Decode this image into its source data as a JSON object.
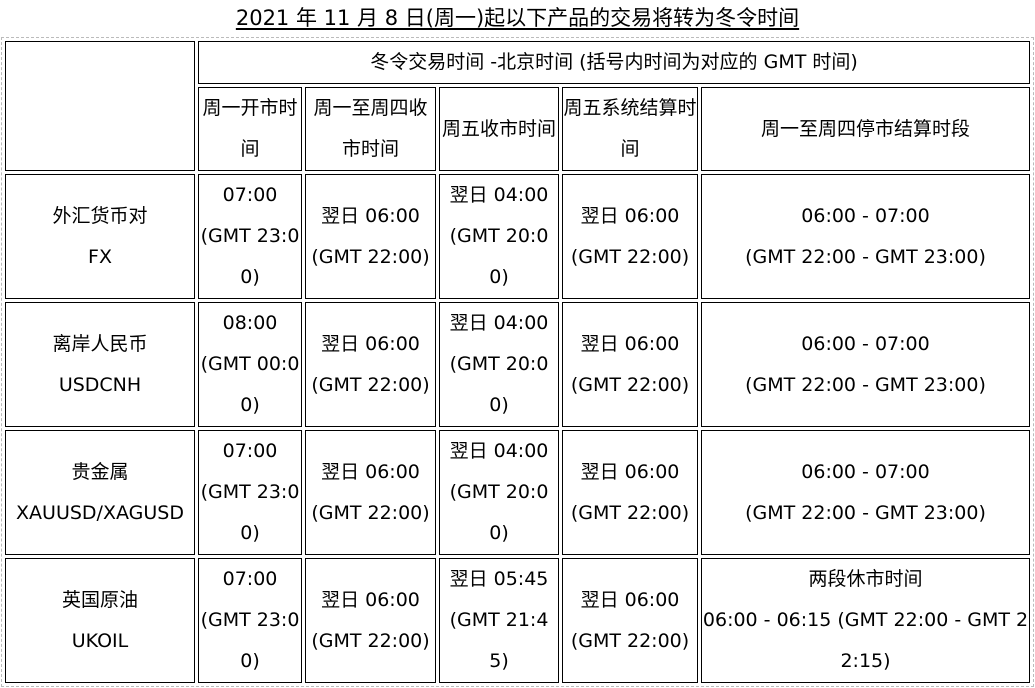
{
  "title": "2021 年 11 月 8 日(周一)起以下产品的交易将转为冬令时间",
  "header": {
    "group": "冬令交易时间 -北京时间 (括号内时间为对应的 GMT 时间)",
    "columns": [
      "周一开市时间",
      "周一至周四收市时间",
      "周五收市时间",
      "周五系统结算时间",
      "周一至周四停市结算时段"
    ]
  },
  "rows": [
    {
      "product": "外汇货币对",
      "symbol": "FX",
      "open": "07:00",
      "open_gmt": "(GMT 23:00)",
      "close": "翌日 06:00",
      "close_gmt": "(GMT 22:00)",
      "fri_close": "翌日 04:00",
      "fri_close_gmt": "(GMT 20:00)",
      "settle": "翌日 06:00",
      "settle_gmt": "(GMT 22:00)",
      "halt": "06:00 - 07:00",
      "halt_gmt": "(GMT 22:00 - GMT 23:00)"
    },
    {
      "product": "离岸人民币",
      "symbol": "USDCNH",
      "open": "08:00",
      "open_gmt": "(GMT 00:00)",
      "close": "翌日 06:00",
      "close_gmt": "(GMT 22:00)",
      "fri_close": "翌日 04:00",
      "fri_close_gmt": "(GMT 20:00)",
      "settle": "翌日 06:00",
      "settle_gmt": "(GMT 22:00)",
      "halt": "06:00 - 07:00",
      "halt_gmt": "(GMT 22:00 - GMT 23:00)"
    },
    {
      "product": "贵金属",
      "symbol": "XAUUSD/XAGUSD",
      "open": "07:00",
      "open_gmt": "(GMT 23:00)",
      "close": "翌日 06:00",
      "close_gmt": "(GMT 22:00)",
      "fri_close": "翌日 04:00",
      "fri_close_gmt": "(GMT 20:00)",
      "settle": "翌日 06:00",
      "settle_gmt": "(GMT 22:00)",
      "halt": "06:00 - 07:00",
      "halt_gmt": "(GMT 22:00 - GMT 23:00)"
    },
    {
      "product": "英国原油",
      "symbol": "UKOIL",
      "open": "07:00",
      "open_gmt": "(GMT 23:00)",
      "close": "翌日 06:00",
      "close_gmt": "(GMT 22:00)",
      "fri_close": "翌日 05:45",
      "fri_close_gmt": "(GMT 21:45)",
      "settle": "翌日 06:00",
      "settle_gmt": "(GMT 22:00)",
      "halt": "两段休市时间",
      "halt_gmt": "06:00 - 06:15 (GMT 22:00 - GMT 22:15)"
    }
  ]
}
